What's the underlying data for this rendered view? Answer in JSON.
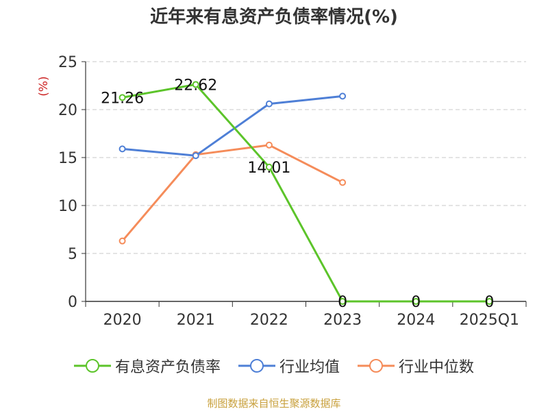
{
  "chart_data": {
    "type": "line",
    "title": "近年来有息资产负债率情况(%)",
    "ylabel": "(%)",
    "xlabel": "",
    "categories": [
      "2020",
      "2021",
      "2022",
      "2023",
      "2024",
      "2025Q1"
    ],
    "ylim": [
      0,
      25
    ],
    "yticks": [
      0,
      5,
      10,
      15,
      20,
      25
    ],
    "grid": true,
    "legend_position": "bottom",
    "series": [
      {
        "name": "有息资产负债率",
        "color": "#5cc42a",
        "values": [
          21.26,
          22.62,
          14.01,
          0,
          0,
          0
        ],
        "labels": [
          "21.26",
          "22.62",
          "14.01",
          "0",
          "0",
          "0"
        ]
      },
      {
        "name": "行业均值",
        "color": "#4e7fd6",
        "values": [
          15.9,
          15.2,
          20.6,
          21.4,
          null,
          null
        ]
      },
      {
        "name": "行业中位数",
        "color": "#f58c5a",
        "values": [
          6.3,
          15.3,
          16.3,
          12.4,
          null,
          null
        ]
      }
    ]
  },
  "footer": {
    "source": "制图数据来自恒生聚源数据库"
  }
}
